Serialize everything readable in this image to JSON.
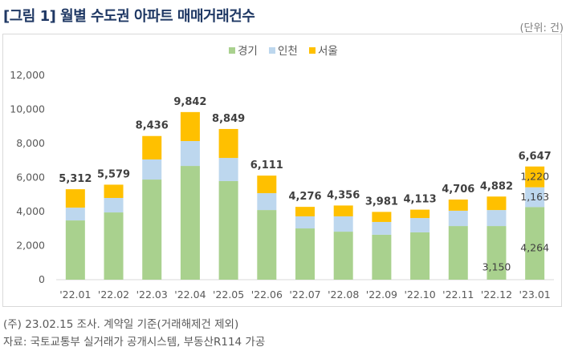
{
  "title": "[그림 1] 월별 수도권 아파트 매매거래건수",
  "unit": "(단위: 건)",
  "notes": [
    "(주) 23.02.15 조사. 계약일 기준(거래해제건 제외)",
    "자료: 국토교통부 실거래가 공개시스템, 부동산R114 가공"
  ],
  "chart_data": {
    "type": "bar",
    "stacked": true,
    "title": "월별 수도권 아파트 매매거래건수",
    "xlabel": "",
    "ylabel": "건",
    "ylim": [
      0,
      12000
    ],
    "yticks": [
      0,
      2000,
      4000,
      6000,
      8000,
      10000,
      12000
    ],
    "ytick_labels": [
      "0",
      "2,000",
      "4,000",
      "6,000",
      "8,000",
      "10,000",
      "12,000"
    ],
    "legend_position": "top-center",
    "categories": [
      "'22.01",
      "'22.02",
      "'22.03",
      "'22.04",
      "'22.05",
      "'22.06",
      "'22.07",
      "'22.08",
      "'22.09",
      "'22.10",
      "'22.11",
      "'22.12",
      "'23.01"
    ],
    "series": [
      {
        "name": "경기",
        "color": "#a9d18e",
        "values": [
          3480,
          3950,
          5880,
          6680,
          5790,
          4090,
          3010,
          2820,
          2640,
          2780,
          3150,
          3150,
          4264
        ]
      },
      {
        "name": "인천",
        "color": "#bdd7ee",
        "values": [
          750,
          850,
          1180,
          1460,
          1360,
          990,
          710,
          900,
          750,
          840,
          900,
          940,
          1163
        ]
      },
      {
        "name": "서울",
        "color": "#ffc000",
        "values": [
          1082,
          779,
          1376,
          1702,
          1699,
          1031,
          556,
          636,
          591,
          493,
          656,
          792,
          1220
        ]
      }
    ],
    "totals": [
      "5,312",
      "5,579",
      "8,436",
      "9,842",
      "8,849",
      "6,111",
      "4,276",
      "4,356",
      "3,981",
      "4,113",
      "4,706",
      "4,882",
      "6,647"
    ],
    "segment_labels": [
      {
        "category": "'22.12",
        "series": "경기",
        "text": "3,150"
      },
      {
        "category": "'23.01",
        "series": "경기",
        "text": "4,264"
      },
      {
        "category": "'23.01",
        "series": "인천",
        "text": "1,163"
      },
      {
        "category": "'23.01",
        "series": "서울",
        "text": "1,220"
      }
    ]
  }
}
